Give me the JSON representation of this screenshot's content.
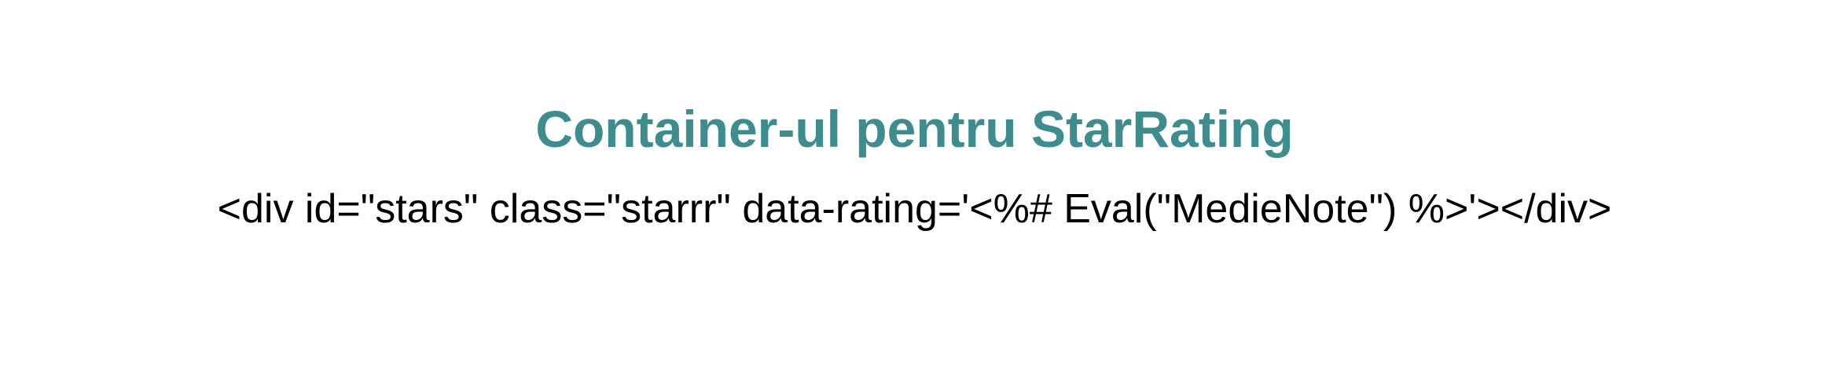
{
  "slide": {
    "title": "Container-ul pentru StarRating",
    "code": "<div id=\"stars\" class=\"starrr\" data-rating='<%# Eval(\"MedieNote\") %>'></div>"
  },
  "colors": {
    "title": "#3d8c8e",
    "code": "#000000",
    "background": "#ffffff"
  }
}
